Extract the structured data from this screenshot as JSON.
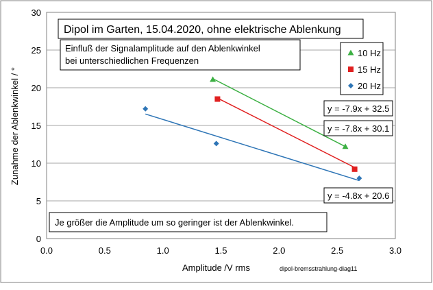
{
  "chart_data": {
    "type": "scatter",
    "title": "Dipol im Garten, 15.04.2020, ohne elektrische Ablenkung",
    "subtitle_lines": [
      "Einfluß der Signalamplitude auf den Ablenkwinkel",
      "bei unterschiedlichen Frequenzen"
    ],
    "annotation": "Je größer die Amplitude um so geringer ist der Ablenkwinkel.",
    "footnote": "dipol-bremsstrahlung-diag11",
    "xlabel": "Amplitude /V rms",
    "ylabel": "Zunahme der Ablenkwinkel / °",
    "xlim": [
      0.0,
      3.0
    ],
    "ylim": [
      0,
      30
    ],
    "x_ticks": [
      "0.0",
      "0.5",
      "1.0",
      "1.5",
      "2.0",
      "2.5",
      "3.0"
    ],
    "y_ticks": [
      "0",
      "5",
      "10",
      "15",
      "20",
      "25",
      "30"
    ],
    "grid": "horizontal",
    "legend_position": "top-right",
    "series": [
      {
        "name": "10 Hz",
        "color": "#3cb043",
        "marker": "triangle",
        "points": [
          [
            1.43,
            21.1
          ],
          [
            2.57,
            12.2
          ]
        ],
        "trendline": {
          "slope": -7.9,
          "intercept": 32.5,
          "x_range": [
            1.43,
            2.57
          ]
        },
        "equation": "y = -7.9x + 32.5"
      },
      {
        "name": "15 Hz",
        "color": "#e02020",
        "marker": "square",
        "points": [
          [
            1.47,
            18.5
          ],
          [
            2.65,
            9.2
          ]
        ],
        "trendline": {
          "slope": -7.8,
          "intercept": 30.1,
          "x_range": [
            1.47,
            2.65
          ]
        },
        "equation": "y = -7.8x + 30.1"
      },
      {
        "name": "20 Hz",
        "color": "#2e75b6",
        "marker": "diamond",
        "points": [
          [
            0.85,
            17.2
          ],
          [
            1.46,
            12.6
          ],
          [
            2.69,
            8.0
          ]
        ],
        "trendline": {
          "slope": -4.8,
          "intercept": 20.6,
          "x_range": [
            0.85,
            2.69
          ]
        },
        "equation": "y = -4.8x + 20.6"
      }
    ]
  }
}
